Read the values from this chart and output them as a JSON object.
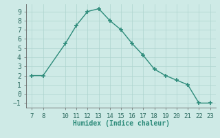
{
  "x": [
    7,
    8,
    10,
    11,
    12,
    13,
    14,
    15,
    16,
    17,
    18,
    19,
    20,
    21,
    22,
    23
  ],
  "y": [
    2.0,
    2.0,
    5.5,
    7.5,
    9.0,
    9.3,
    8.0,
    7.0,
    5.5,
    4.2,
    2.7,
    2.0,
    1.5,
    1.0,
    -1.0,
    -1.0
  ],
  "xlim": [
    6.5,
    23.5
  ],
  "ylim": [
    -1.5,
    9.8
  ],
  "xticks": [
    7,
    8,
    10,
    11,
    12,
    13,
    14,
    15,
    16,
    17,
    18,
    19,
    20,
    21,
    22,
    23
  ],
  "yticks": [
    -1,
    0,
    1,
    2,
    3,
    4,
    5,
    6,
    7,
    8,
    9
  ],
  "xlabel": "Humidex (Indice chaleur)",
  "line_color": "#2d8b7a",
  "bg_color": "#ceeae6",
  "grid_color": "#aed4ce",
  "marker": "+",
  "marker_size": 5,
  "linewidth": 1.0
}
